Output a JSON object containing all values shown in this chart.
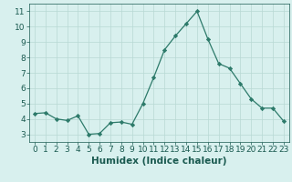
{
  "x": [
    0,
    1,
    2,
    3,
    4,
    5,
    6,
    7,
    8,
    9,
    10,
    11,
    12,
    13,
    14,
    15,
    16,
    17,
    18,
    19,
    20,
    21,
    22,
    23
  ],
  "y": [
    4.35,
    4.4,
    4.0,
    3.9,
    4.2,
    3.0,
    3.05,
    3.75,
    3.8,
    3.65,
    5.0,
    6.7,
    8.5,
    9.4,
    10.2,
    11.0,
    9.2,
    7.6,
    7.3,
    6.3,
    5.3,
    4.7,
    4.7,
    3.85
  ],
  "line_color": "#2d7a6a",
  "marker": "D",
  "marker_size": 2.2,
  "bg_color": "#d8f0ee",
  "grid_color": "#b8d8d4",
  "xlabel": "Humidex (Indice chaleur)",
  "ylim": [
    2.5,
    11.5
  ],
  "xlim": [
    -0.5,
    23.5
  ],
  "yticks": [
    3,
    4,
    5,
    6,
    7,
    8,
    9,
    10,
    11
  ],
  "xticks": [
    0,
    1,
    2,
    3,
    4,
    5,
    6,
    7,
    8,
    9,
    10,
    11,
    12,
    13,
    14,
    15,
    16,
    17,
    18,
    19,
    20,
    21,
    22,
    23
  ],
  "font_color": "#1a5a50",
  "xlabel_fontsize": 7.5,
  "tick_fontsize": 6.5
}
